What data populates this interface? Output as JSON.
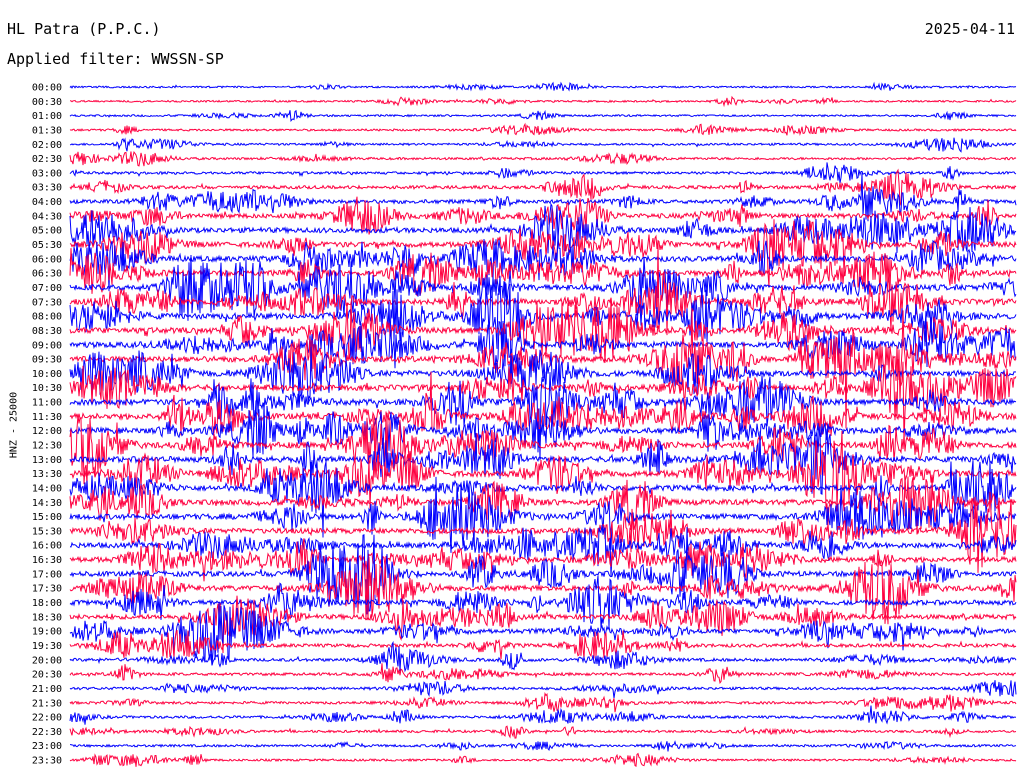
{
  "header": {
    "station": "HL Patra (P.P.C.)",
    "date": "2025-04-11",
    "filter": "Applied filter: WWSSN-SP"
  },
  "colors": {
    "blue": "#0000ff",
    "red": "#ff0040"
  },
  "chart_data": {
    "type": "line",
    "subtype": "helicorder",
    "ylabel": "HNZ - 25000",
    "rows": [
      {
        "label": "00:00",
        "color": "blue",
        "activity": 0.12
      },
      {
        "label": "00:30",
        "color": "red",
        "activity": 0.12
      },
      {
        "label": "01:00",
        "color": "blue",
        "activity": 0.15
      },
      {
        "label": "01:30",
        "color": "red",
        "activity": 0.18
      },
      {
        "label": "02:00",
        "color": "blue",
        "activity": 0.2
      },
      {
        "label": "02:30",
        "color": "red",
        "activity": 0.25
      },
      {
        "label": "03:00",
        "color": "blue",
        "activity": 0.3
      },
      {
        "label": "03:30",
        "color": "red",
        "activity": 0.45
      },
      {
        "label": "04:00",
        "color": "blue",
        "activity": 0.6
      },
      {
        "label": "04:30",
        "color": "red",
        "activity": 0.75
      },
      {
        "label": "05:00",
        "color": "blue",
        "activity": 0.85
      },
      {
        "label": "05:30",
        "color": "red",
        "activity": 0.9
      },
      {
        "label": "06:00",
        "color": "blue",
        "activity": 0.95
      },
      {
        "label": "06:30",
        "color": "red",
        "activity": 0.95
      },
      {
        "label": "07:00",
        "color": "blue",
        "activity": 1.0
      },
      {
        "label": "07:30",
        "color": "red",
        "activity": 1.0
      },
      {
        "label": "08:00",
        "color": "blue",
        "activity": 1.0
      },
      {
        "label": "08:30",
        "color": "red",
        "activity": 1.0
      },
      {
        "label": "09:00",
        "color": "blue",
        "activity": 1.0
      },
      {
        "label": "09:30",
        "color": "red",
        "activity": 1.0
      },
      {
        "label": "10:00",
        "color": "blue",
        "activity": 1.0
      },
      {
        "label": "10:30",
        "color": "red",
        "activity": 1.0
      },
      {
        "label": "11:00",
        "color": "blue",
        "activity": 1.0
      },
      {
        "label": "11:30",
        "color": "red",
        "activity": 1.0
      },
      {
        "label": "12:00",
        "color": "blue",
        "activity": 1.0
      },
      {
        "label": "12:30",
        "color": "red",
        "activity": 1.0
      },
      {
        "label": "13:00",
        "color": "blue",
        "activity": 1.0
      },
      {
        "label": "13:30",
        "color": "red",
        "activity": 1.0
      },
      {
        "label": "14:00",
        "color": "blue",
        "activity": 0.95
      },
      {
        "label": "14:30",
        "color": "red",
        "activity": 0.95
      },
      {
        "label": "15:00",
        "color": "blue",
        "activity": 0.95
      },
      {
        "label": "15:30",
        "color": "red",
        "activity": 0.9
      },
      {
        "label": "16:00",
        "color": "blue",
        "activity": 0.9
      },
      {
        "label": "16:30",
        "color": "red",
        "activity": 0.9
      },
      {
        "label": "17:00",
        "color": "blue",
        "activity": 0.85
      },
      {
        "label": "17:30",
        "color": "red",
        "activity": 0.85
      },
      {
        "label": "18:00",
        "color": "blue",
        "activity": 0.8
      },
      {
        "label": "18:30",
        "color": "red",
        "activity": 0.75
      },
      {
        "label": "19:00",
        "color": "blue",
        "activity": 0.7
      },
      {
        "label": "19:30",
        "color": "red",
        "activity": 0.5
      },
      {
        "label": "20:00",
        "color": "blue",
        "activity": 0.4
      },
      {
        "label": "20:30",
        "color": "red",
        "activity": 0.35
      },
      {
        "label": "21:00",
        "color": "blue",
        "activity": 0.3
      },
      {
        "label": "21:30",
        "color": "red",
        "activity": 0.3
      },
      {
        "label": "22:00",
        "color": "blue",
        "activity": 0.3
      },
      {
        "label": "22:30",
        "color": "red",
        "activity": 0.25
      },
      {
        "label": "23:00",
        "color": "blue",
        "activity": 0.25
      },
      {
        "label": "23:30",
        "color": "red",
        "activity": 0.2
      }
    ]
  }
}
